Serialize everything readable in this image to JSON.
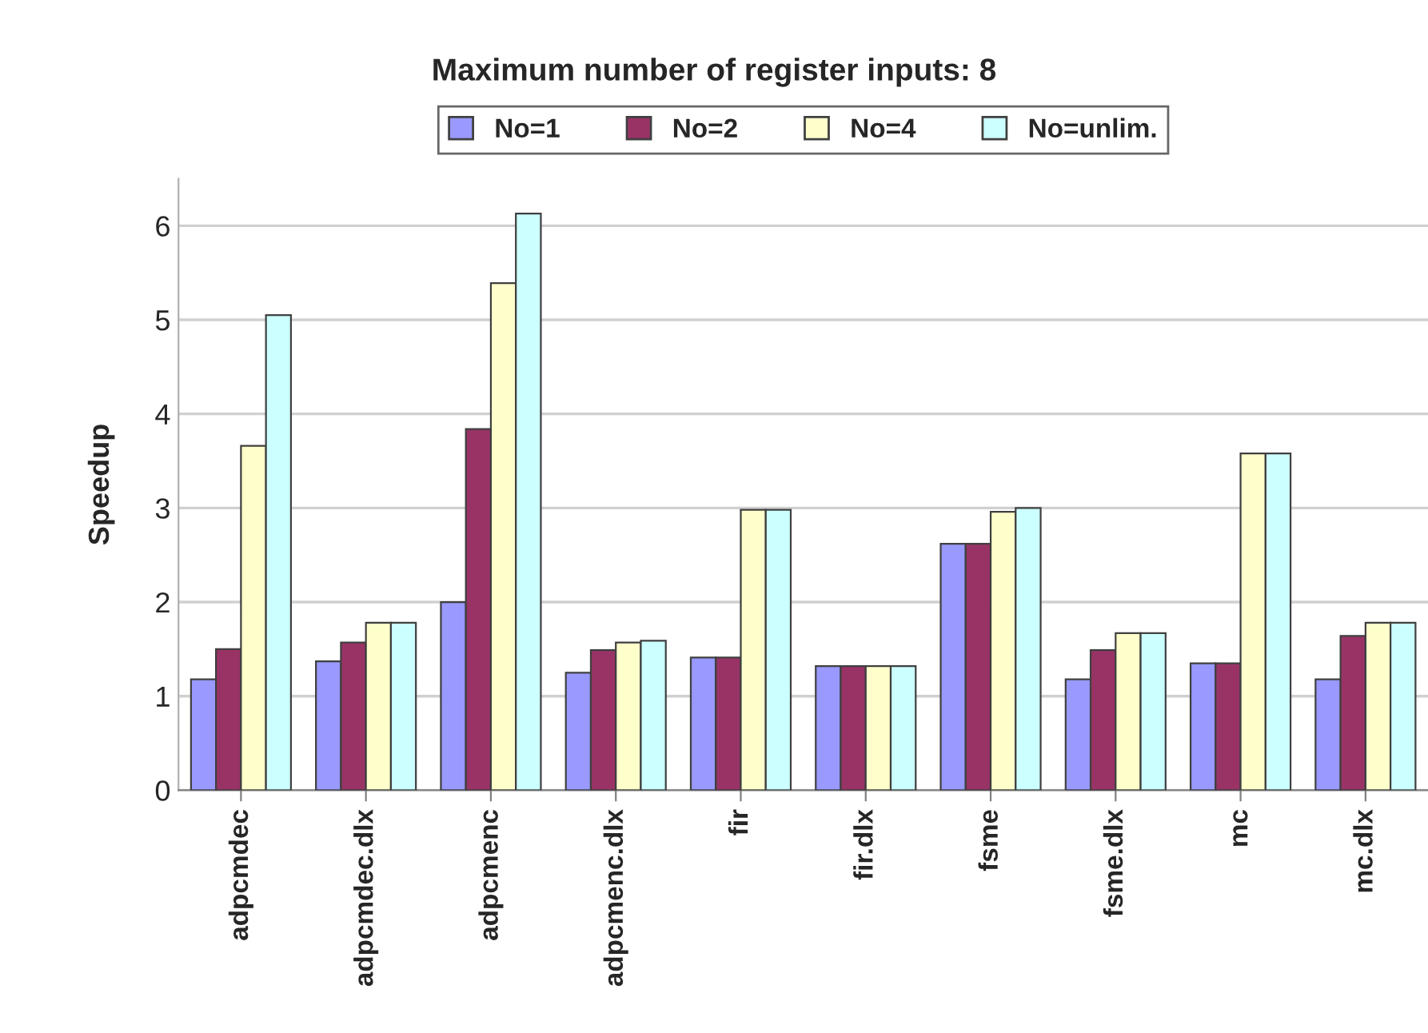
{
  "chart_data": {
    "type": "bar",
    "title": "Maximum number of register inputs: 8",
    "ylabel": "Speedup",
    "categories": [
      "adpcmdec",
      "adpcmdec.dlx",
      "adpcmenc",
      "adpcmenc.dlx",
      "fir",
      "fir.dlx",
      "fsme",
      "fsme.dlx",
      "mc",
      "mc.dlx"
    ],
    "series": [
      {
        "name": "No=1",
        "color": "#9999ff",
        "values": [
          1.18,
          1.37,
          2.0,
          1.25,
          1.41,
          1.32,
          2.62,
          1.18,
          1.35,
          1.18
        ]
      },
      {
        "name": "No=2",
        "color": "#993366",
        "values": [
          1.5,
          1.57,
          3.84,
          1.49,
          1.41,
          1.32,
          2.62,
          1.49,
          1.35,
          1.64
        ]
      },
      {
        "name": "No=4",
        "color": "#ffffcc",
        "values": [
          3.66,
          1.78,
          5.39,
          1.57,
          2.98,
          1.32,
          2.96,
          1.67,
          3.58,
          1.78
        ]
      },
      {
        "name": "No=unlim.",
        "color": "#ccffff",
        "values": [
          5.05,
          1.78,
          6.13,
          1.59,
          2.98,
          1.32,
          3.0,
          1.67,
          3.58,
          1.78
        ]
      }
    ],
    "ylim": [
      0,
      6.5
    ],
    "yticks": [
      0,
      1,
      2,
      3,
      4,
      5,
      6
    ],
    "grid": "y",
    "legend": "top"
  }
}
